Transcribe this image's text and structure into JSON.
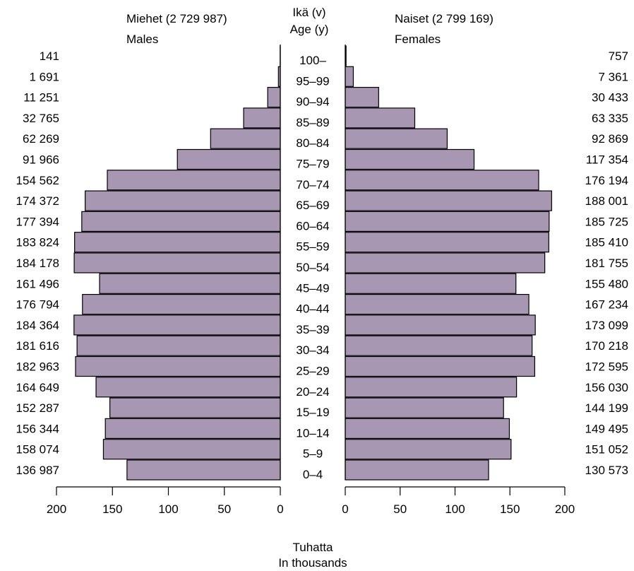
{
  "header": {
    "males_title": "Miehet (2 729 987)",
    "males_subtitle": "Males",
    "age_title": "Ikä (v)",
    "age_subtitle": "Age (y)",
    "females_title": "Naiset (2 799 169)",
    "females_subtitle": "Females"
  },
  "footer": {
    "unit_fi": "Tuhatta",
    "unit_en": "In thousands"
  },
  "colors": {
    "bar_fill": "#a797b3",
    "bar_stroke": "#000000"
  },
  "chart_data": {
    "type": "bar",
    "orientation": "horizontal-pyramid",
    "categories": [
      "0–4",
      "5–9",
      "10–14",
      "15–19",
      "20–24",
      "25–29",
      "30–34",
      "35–39",
      "40–44",
      "45–49",
      "50–54",
      "55–59",
      "60–64",
      "65–69",
      "70–74",
      "75–79",
      "80–84",
      "85–89",
      "90–94",
      "95–99",
      "100–"
    ],
    "value_labels": {
      "males": [
        "136 987",
        "158 074",
        "156 344",
        "152 287",
        "164 649",
        "182 963",
        "181 616",
        "184 364",
        "176 794",
        "161 496",
        "184 178",
        "183 824",
        "177 394",
        "174 372",
        "154 562",
        "91 966",
        "62 269",
        "32 765",
        "11 251",
        "1 691",
        "141"
      ],
      "females": [
        "130 573",
        "151 052",
        "149 495",
        "144 199",
        "156 030",
        "172 595",
        "170 218",
        "173 099",
        "167 234",
        "155 480",
        "181 755",
        "185 410",
        "185 725",
        "188 001",
        "176 194",
        "117 354",
        "92 869",
        "63 335",
        "30 433",
        "7 361",
        "757"
      ]
    },
    "series": [
      {
        "name": "Males",
        "values": [
          136987,
          158074,
          156344,
          152287,
          164649,
          182963,
          181616,
          184364,
          176794,
          161496,
          184178,
          183824,
          177394,
          174372,
          154562,
          91966,
          62269,
          32765,
          11251,
          1691,
          141
        ]
      },
      {
        "name": "Females",
        "values": [
          130573,
          151052,
          149495,
          144199,
          156030,
          172595,
          170218,
          173099,
          167234,
          155480,
          181755,
          185410,
          185725,
          188001,
          176194,
          117354,
          92869,
          63335,
          30433,
          7361,
          757
        ]
      }
    ],
    "xlim": [
      0,
      200
    ],
    "x_unit_divisor": 1000,
    "x_ticks": [
      0,
      50,
      100,
      150,
      200
    ],
    "x_tick_labels": [
      "0",
      "50",
      "100",
      "150",
      "200"
    ]
  }
}
